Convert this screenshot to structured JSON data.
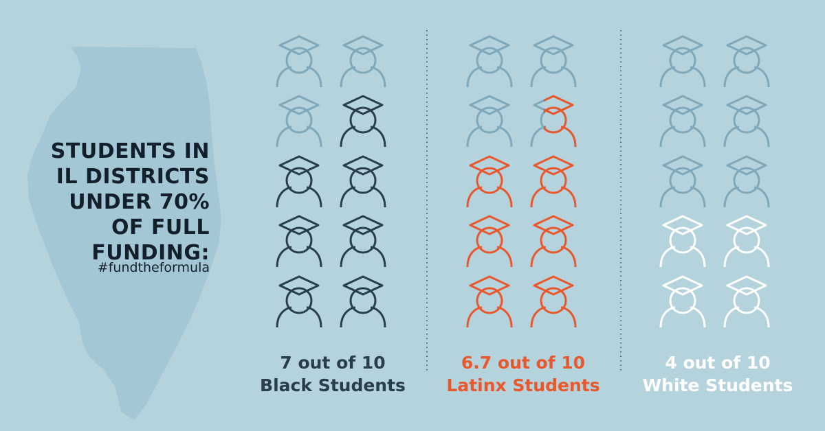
{
  "headline": {
    "lines": [
      "STUDENTS IN",
      "IL DISTRICTS",
      "UNDER 70%",
      "OF FULL",
      "FUNDING:"
    ],
    "hashtag": "#fundtheformula"
  },
  "colors": {
    "background": "#b4d3dd",
    "map": "#a3c7d4",
    "icon_base": "#7fa9ba",
    "black_students": "#2a3d4d",
    "latinx_students": "#e8582c",
    "white_students": "#ffffff",
    "divider": "#2a3d4d"
  },
  "icon": "graduate-cap-person-icon",
  "chart_data": {
    "type": "pictogram",
    "total_per_group": 10,
    "groups": [
      {
        "value": 7,
        "caption": [
          "7 out of 10",
          "Black Students"
        ],
        "color": "#2a3d4d"
      },
      {
        "value": 6.7,
        "caption": [
          "6.7 out of 10",
          "Latinx Students"
        ],
        "color": "#e8582c"
      },
      {
        "value": 4,
        "caption": [
          "4 out of 10",
          "White Students"
        ],
        "color": "#ffffff"
      }
    ]
  }
}
